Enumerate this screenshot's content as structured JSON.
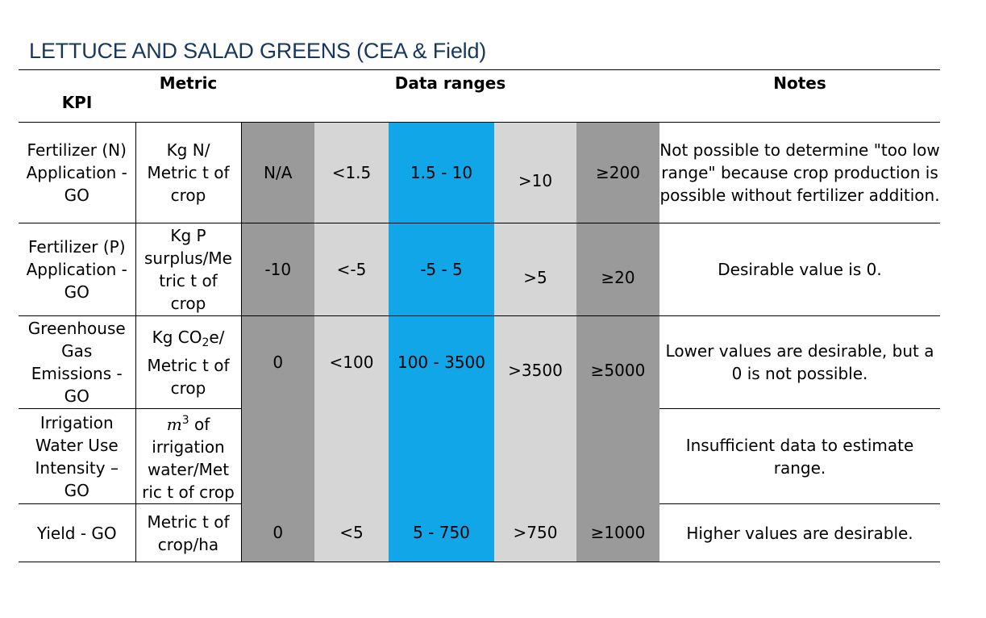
{
  "title": "LETTUCE AND SALAD GREENS (CEA & Field)",
  "colors": {
    "title": "#17375e",
    "dark_gray": "#9a9a9a",
    "light_gray": "#d6d6d6",
    "blue": "#10a6e8"
  },
  "headers": {
    "kpi": "KPI",
    "metric": "Metric",
    "ranges": "Data ranges",
    "notes": "Notes"
  },
  "rows": [
    {
      "kpi": [
        "Fertilizer (N)",
        "Application -",
        "GO"
      ],
      "metric": [
        "Kg N/",
        "Metric t of",
        "crop"
      ],
      "ranges": [
        "N/A",
        "<1.5",
        "1.5 - 10",
        ">10",
        "≥200"
      ],
      "notes": "Not possible to determine \"too low range\" because crop production is possible without fertilizer addition."
    },
    {
      "kpi": [
        "Fertilizer (P)",
        "Application -",
        "GO"
      ],
      "metric": [
        "Kg P",
        "surplus/Me",
        "tric t of",
        "crop"
      ],
      "ranges": [
        "-10",
        "<-5",
        "-5 - 5",
        ">5",
        "≥20"
      ],
      "notes": "Desirable value is 0."
    },
    {
      "kpi": [
        "Greenhouse",
        "Gas",
        "Emissions -",
        "GO"
      ],
      "metric_parts": {
        "prefix": "Kg CO",
        "sub": "2",
        "suffix": "e/"
      },
      "metric": [
        "Metric t of",
        "crop"
      ],
      "ranges": [
        "0",
        "<100",
        "100 - 3500",
        ">3500",
        "≥5000"
      ],
      "notes": "Lower values are desirable, but a 0 is not possible."
    },
    {
      "kpi": [
        "Irrigation",
        "Water Use",
        "Intensity –",
        "GO"
      ],
      "metric_parts": {
        "math": "m",
        "sup": "3",
        "suffix": " of"
      },
      "metric": [
        "irrigation",
        "water/Met",
        "ric t of crop"
      ],
      "ranges": [
        "",
        "",
        "",
        "",
        ""
      ],
      "notes": "Insufficient data to estimate range."
    },
    {
      "kpi": [
        "Yield - GO"
      ],
      "metric": [
        "Metric t of",
        "crop/ha"
      ],
      "ranges": [
        "0",
        "<5",
        "5 - 750",
        ">750",
        "≥1000"
      ],
      "notes": "Higher values are desirable."
    }
  ]
}
